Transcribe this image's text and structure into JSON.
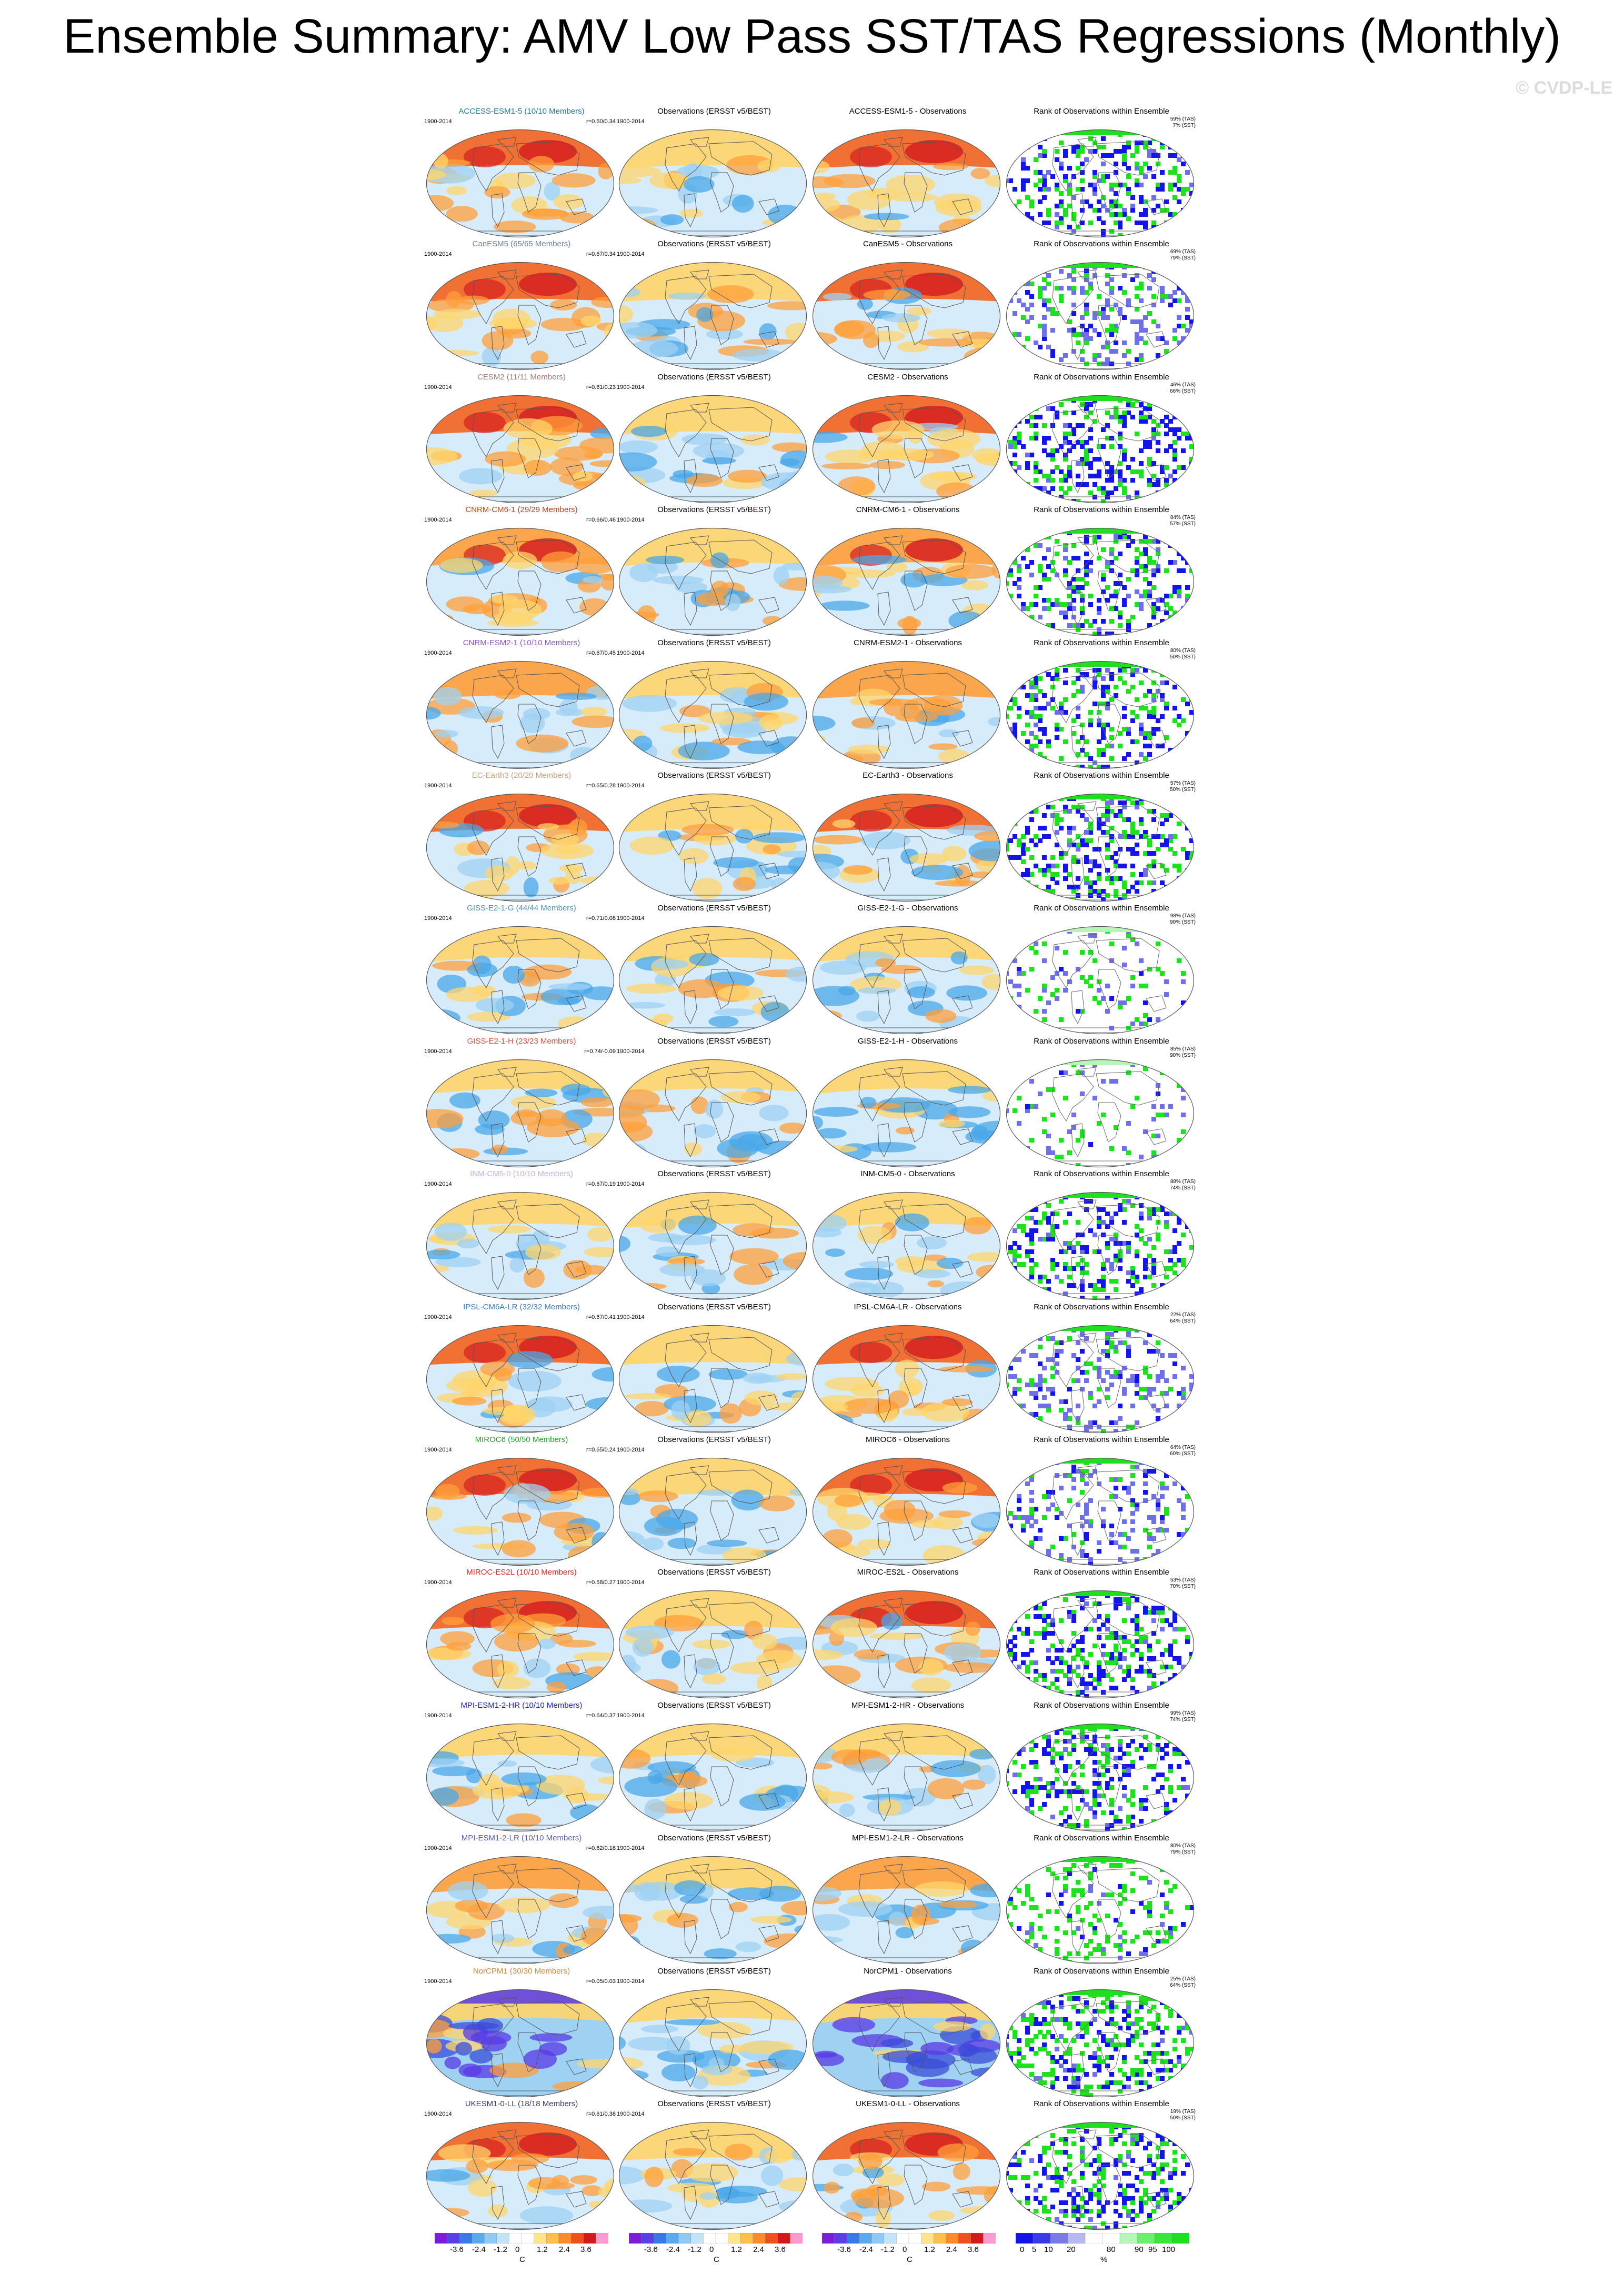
{
  "title": "Ensemble Summary: AMV Low Pass SST/TAS Regressions (Monthly)",
  "watermark": "© CVDP-LE",
  "colors": {
    "warm": [
      "#ffd56b",
      "#ff9f3a",
      "#f4631e",
      "#d62020"
    ],
    "cool": [
      "#d7ecfa",
      "#9fd1f3",
      "#4aa8e8"
    ],
    "deep_cool": [
      "#5838e6",
      "#3a4cd8"
    ],
    "rank": [
      "#1414e6",
      "#6f6fe6",
      "#c8c8f5",
      "#ffffff",
      "#b8f5b8",
      "#1ee01e"
    ]
  },
  "obs_caption": "Observations (ERSST v5/BEST)",
  "rank_caption": "Rank of Observations within Ensemble",
  "years": "1900-2014",
  "rows": [
    {
      "model_caption": "ACCESS-ESM1-5 (10/10 Members)",
      "caption_color": "#1a7f9c",
      "diff_caption": "ACCESS-ESM1-5 - Observations",
      "r": "r=0.60/0.34",
      "rank_tas": "59% (TAS)",
      "rank_sst": "7% (SST)",
      "warmth": 0.82,
      "pattern": "strong",
      "rank_mode": "green"
    },
    {
      "model_caption": "CanESM5 (65/65 Members)",
      "caption_color": "#6a7fa3",
      "diff_caption": "CanESM5 - Observations",
      "r": "r=0.67/0.34",
      "rank_tas": "69% (TAS)",
      "rank_sst": "79% (SST)",
      "warmth": 0.9,
      "pattern": "strong",
      "rank_mode": "light"
    },
    {
      "model_caption": "CESM2 (11/11 Members)",
      "caption_color": "#a57a7a",
      "diff_caption": "CESM2 - Observations",
      "r": "r=0.61/0.23",
      "rank_tas": "46% (TAS)",
      "rank_sst": "66% (SST)",
      "warmth": 0.85,
      "pattern": "strong",
      "rank_mode": "blue"
    },
    {
      "model_caption": "CNRM-CM6-1 (29/29 Members)",
      "caption_color": "#c0461a",
      "diff_caption": "CNRM-CM6-1 - Observations",
      "r": "r=0.66/0.46",
      "rank_tas": "84% (TAS)",
      "rank_sst": "57% (SST)",
      "warmth": 0.72,
      "pattern": "moderate",
      "rank_mode": "mixed"
    },
    {
      "model_caption": "CNRM-ESM2-1 (10/10 Members)",
      "caption_color": "#8a57c8",
      "diff_caption": "CNRM-ESM2-1 - Observations",
      "r": "r=0.67/0.45",
      "rank_tas": "80% (TAS)",
      "rank_sst": "50% (SST)",
      "warmth": 0.7,
      "pattern": "moderate",
      "rank_mode": "mixed"
    },
    {
      "model_caption": "EC-Earth3 (20/20 Members)",
      "caption_color": "#c8a078",
      "diff_caption": "EC-Earth3 - Observations",
      "r": "r=0.65/0.28",
      "rank_tas": "57% (TAS)",
      "rank_sst": "50% (SST)",
      "warmth": 0.78,
      "pattern": "strong",
      "rank_mode": "blue"
    },
    {
      "model_caption": "GISS-E2-1-G (44/44 Members)",
      "caption_color": "#4a8fb0",
      "diff_caption": "GISS-E2-1-G - Observations",
      "r": "r=0.71/0.08",
      "rank_tas": "98% (TAS)",
      "rank_sst": "90% (SST)",
      "warmth": 0.45,
      "pattern": "weak",
      "rank_mode": "sparse"
    },
    {
      "model_caption": "GISS-E2-1-H (23/23 Members)",
      "caption_color": "#e0503a",
      "diff_caption": "GISS-E2-1-H - Observations",
      "r": "r=0.74/-0.09",
      "rank_tas": "85% (TAS)",
      "rank_sst": "90% (SST)",
      "warmth": 0.3,
      "pattern": "cool",
      "rank_mode": "sparse"
    },
    {
      "model_caption": "INM-CM5-0 (10/10 Members)",
      "caption_color": "#c8b0d8",
      "diff_caption": "INM-CM5-0 - Observations",
      "r": "r=0.67/0.19",
      "rank_tas": "88% (TAS)",
      "rank_sst": "74% (SST)",
      "warmth": 0.5,
      "pattern": "weak",
      "rank_mode": "mixed"
    },
    {
      "model_caption": "IPSL-CM6A-LR (32/32 Members)",
      "caption_color": "#3a78c8",
      "diff_caption": "IPSL-CM6A-LR - Observations",
      "r": "r=0.67/0.41",
      "rank_tas": "22% (TAS)",
      "rank_sst": "64% (SST)",
      "warmth": 0.92,
      "pattern": "strong",
      "rank_mode": "light"
    },
    {
      "model_caption": "MIROC6 (50/50 Members)",
      "caption_color": "#2a9a2a",
      "diff_caption": "MIROC6 - Observations",
      "r": "r=0.65/0.24",
      "rank_tas": "64% (TAS)",
      "rank_sst": "60% (SST)",
      "warmth": 0.86,
      "pattern": "strong",
      "rank_mode": "light"
    },
    {
      "model_caption": "MIROC-ES2L (10/10 Members)",
      "caption_color": "#d42a2a",
      "diff_caption": "MIROC-ES2L - Observations",
      "r": "r=0.58/0.27",
      "rank_tas": "53% (TAS)",
      "rank_sst": "70% (SST)",
      "warmth": 0.82,
      "pattern": "strong",
      "rank_mode": "blue"
    },
    {
      "model_caption": "MPI-ESM1-2-HR (10/10 Members)",
      "caption_color": "#2020c8",
      "diff_caption": "MPI-ESM1-2-HR - Observations",
      "r": "r=0.64/0.37",
      "rank_tas": "99% (TAS)",
      "rank_sst": "74% (SST)",
      "warmth": 0.45,
      "pattern": "weak",
      "rank_mode": "mixed"
    },
    {
      "model_caption": "MPI-ESM1-2-LR (10/10 Members)",
      "caption_color": "#5a5aa8",
      "diff_caption": "MPI-ESM1-2-LR - Observations",
      "r": "r=0.62/0.18",
      "rank_tas": "80% (TAS)",
      "rank_sst": "79% (SST)",
      "warmth": 0.55,
      "pattern": "weak",
      "rank_mode": "sparse_green"
    },
    {
      "model_caption": "NorCPM1 (30/30 Members)",
      "caption_color": "#d08a4a",
      "diff_caption": "NorCPM1 - Observations",
      "r": "r=0.05/0.03",
      "rank_tas": "25% (TAS)",
      "rank_sst": "64% (SST)",
      "warmth": 0.25,
      "pattern": "deep",
      "rank_mode": "green_heavy"
    },
    {
      "model_caption": "UKESM1-0-LL (18/18 Members)",
      "caption_color": "#3a3a6a",
      "diff_caption": "UKESM1-0-LL - Observations",
      "r": "r=0.61/0.38",
      "rank_tas": "19% (TAS)",
      "rank_sst": "50% (SST)",
      "warmth": 0.8,
      "pattern": "strong",
      "rank_mode": "blue"
    }
  ],
  "colorbars": [
    {
      "ticks": [
        "-3.6",
        "-2.4",
        "-1.2",
        "0",
        "1.2",
        "2.4",
        "3.6"
      ],
      "unit": "C"
    },
    {
      "ticks": [
        "-3.6",
        "-2.4",
        "-1.2",
        "0",
        "1.2",
        "2.4",
        "3.6"
      ],
      "unit": "C"
    },
    {
      "ticks": [
        "-3.6",
        "-2.4",
        "-1.2",
        "0",
        "1.2",
        "2.4",
        "3.6"
      ],
      "unit": "C"
    },
    {
      "ticks": [
        "0",
        "5",
        "10",
        "20",
        "80",
        "90",
        "95",
        "100"
      ],
      "unit": "%"
    }
  ]
}
